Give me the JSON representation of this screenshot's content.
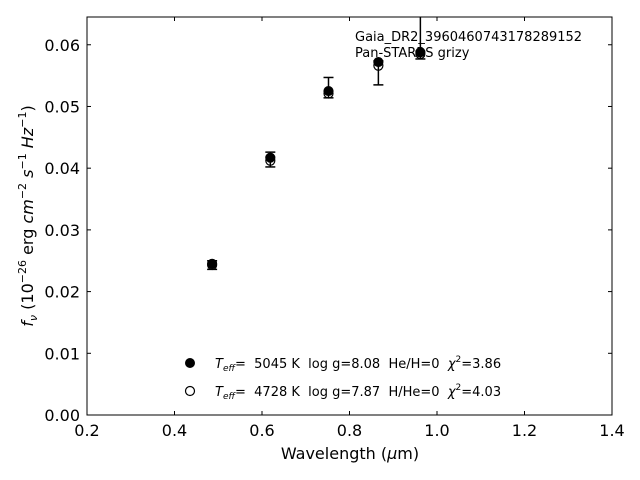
{
  "chart_data": {
    "type": "scatter",
    "xlabel": "Wavelength (μm)",
    "ylabel": "f_ν (10^-26 erg cm^-2 s^-1 Hz^-1)",
    "xlim": [
      0.2,
      1.4
    ],
    "ylim": [
      0.0,
      0.0645
    ],
    "x_ticks": [
      0.2,
      0.4,
      0.6,
      0.8,
      1.0,
      1.2,
      1.4
    ],
    "x_tick_labels": [
      "0.2",
      "0.4",
      "0.6",
      "0.8",
      "1.0",
      "1.2",
      "1.4"
    ],
    "y_ticks": [
      0.0,
      0.01,
      0.02,
      0.03,
      0.04,
      0.05,
      0.06
    ],
    "y_tick_labels": [
      "0.00",
      "0.01",
      "0.02",
      "0.03",
      "0.04",
      "0.05",
      "0.06"
    ],
    "grid": false,
    "annotation": {
      "line1": "Gaia_DR2_3960460743178289152",
      "line2": "Pan-STARRS grizy"
    },
    "observed": {
      "x": [
        0.486,
        0.619,
        0.752,
        0.866,
        0.962
      ],
      "y": [
        0.0243,
        0.0414,
        0.0523,
        0.0568,
        0.0587
      ],
      "yerr_low": [
        0.0007,
        0.0012,
        0.0009,
        0.0033,
        0.001
      ],
      "yerr_high": [
        0.0007,
        0.0012,
        0.0024,
        0.0006,
        0.01
      ]
    },
    "series": [
      {
        "marker": "filled",
        "x": [
          0.486,
          0.619,
          0.752,
          0.866,
          0.962
        ],
        "y": [
          0.0245,
          0.0417,
          0.0525,
          0.0572,
          0.0588
        ]
      },
      {
        "marker": "open",
        "x": [
          0.486,
          0.619,
          0.752,
          0.866,
          0.962
        ],
        "y": [
          0.0243,
          0.0412,
          0.0521,
          0.0566,
          0.0585
        ]
      }
    ],
    "legend": {
      "placement": "lower-center",
      "entries": [
        {
          "marker": "filled",
          "teff_label": "T",
          "teff_sub": "eff",
          "text": "=  5045 K  log g=8.08  He/H=0  ",
          "chi_label": "χ",
          "chi_sup": "2",
          "chi_val": "=3.86"
        },
        {
          "marker": "open",
          "teff_label": "T",
          "teff_sub": "eff",
          "text": "=  4728 K  log g=7.87  H/He=0  ",
          "chi_label": "χ",
          "chi_sup": "2",
          "chi_val": "=4.03"
        }
      ]
    }
  }
}
